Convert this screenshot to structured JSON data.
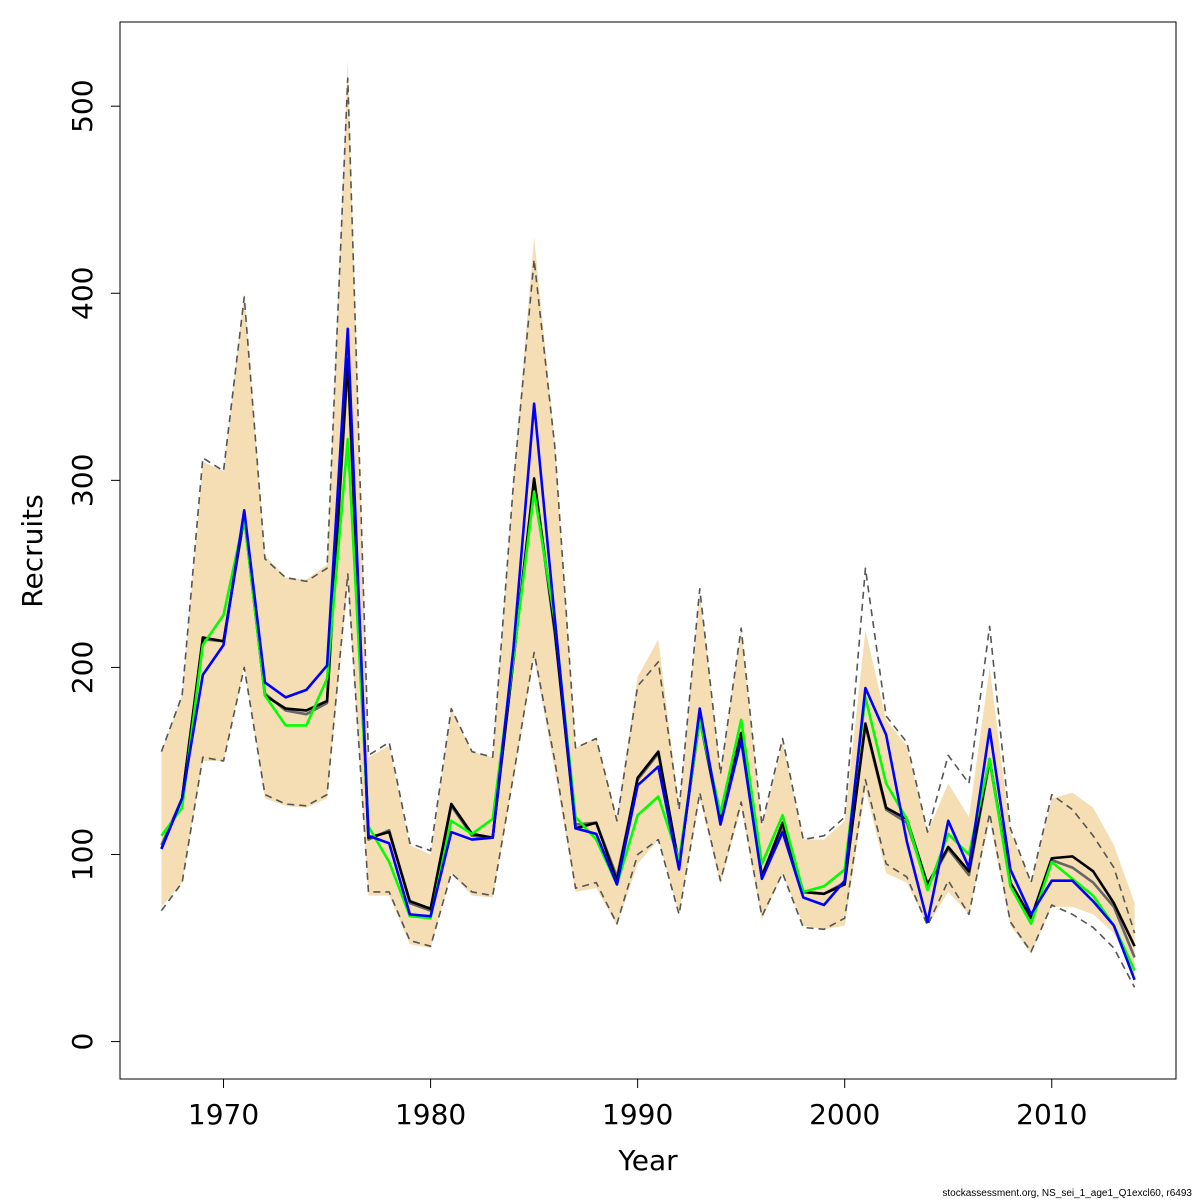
{
  "chart_data": {
    "type": "line",
    "title": "",
    "xlabel": "Year",
    "ylabel": "Recruits",
    "xlim": [
      1965,
      2016
    ],
    "ylim": [
      -20,
      545
    ],
    "x_ticks": [
      1970,
      1980,
      1990,
      2000,
      2010
    ],
    "y_ticks": [
      0,
      100,
      200,
      300,
      400,
      500
    ],
    "grid": false,
    "legend": "none",
    "footer": "stockassessment.org, NS_sei_1_age1_Q1excl60, r6493",
    "x": [
      1967,
      1968,
      1969,
      1970,
      1971,
      1972,
      1973,
      1974,
      1975,
      1976,
      1977,
      1978,
      1979,
      1980,
      1981,
      1982,
      1983,
      1984,
      1985,
      1986,
      1987,
      1988,
      1989,
      1990,
      1991,
      1992,
      1993,
      1994,
      1995,
      1996,
      1997,
      1998,
      1999,
      2000,
      2001,
      2002,
      2003,
      2004,
      2005,
      2006,
      2007,
      2008,
      2009,
      2010,
      2011,
      2012,
      2013,
      2014
    ],
    "band": {
      "color": "#F5DEB3",
      "lower": [
        72,
        85,
        150,
        150,
        200,
        130,
        126,
        125,
        130,
        245,
        78,
        78,
        52,
        50,
        90,
        78,
        77,
        140,
        205,
        145,
        80,
        82,
        62,
        95,
        108,
        68,
        130,
        84,
        125,
        65,
        90,
        62,
        60,
        62,
        135,
        90,
        85,
        62,
        80,
        68,
        118,
        62,
        47,
        72,
        72,
        68,
        58,
        35
      ],
      "upper": [
        155,
        185,
        310,
        305,
        400,
        260,
        248,
        247,
        255,
        525,
        152,
        158,
        105,
        100,
        178,
        155,
        152,
        300,
        430,
        320,
        157,
        162,
        120,
        195,
        215,
        125,
        240,
        145,
        220,
        115,
        160,
        108,
        108,
        118,
        220,
        172,
        158,
        112,
        138,
        120,
        200,
        112,
        85,
        130,
        133,
        125,
        105,
        74
      ]
    },
    "series": [
      {
        "color": "#555555",
        "style": "dashed",
        "values": [
          70,
          85,
          152,
          150,
          200,
          132,
          127,
          126,
          132,
          250,
          80,
          80,
          54,
          51,
          90,
          80,
          78,
          142,
          208,
          150,
          82,
          85,
          63,
          100,
          108,
          68,
          133,
          86,
          128,
          67,
          90,
          61,
          60,
          66,
          140,
          95,
          88,
          62,
          86,
          68,
          122,
          64,
          48,
          73,
          68,
          61,
          50,
          29
        ]
      },
      {
        "color": "#555555",
        "style": "dashed",
        "values": [
          155,
          185,
          312,
          305,
          398,
          258,
          248,
          246,
          253,
          515,
          153,
          160,
          106,
          102,
          178,
          155,
          152,
          298,
          418,
          318,
          157,
          162,
          118,
          190,
          203,
          124,
          242,
          143,
          221,
          116,
          162,
          108,
          110,
          120,
          253,
          174,
          160,
          112,
          153,
          138,
          222,
          114,
          85,
          132,
          124,
          110,
          93,
          58
        ]
      },
      {
        "color": "#666666",
        "style": "solid",
        "values": [
          105,
          130,
          215,
          214,
          280,
          186,
          177,
          175,
          181,
          362,
          108,
          113,
          74,
          70,
          126,
          110,
          109,
          204,
          300,
          218,
          116,
          117,
          88,
          140,
          154,
          95,
          172,
          117,
          163,
          89,
          115,
          80,
          79,
          85,
          169,
          124,
          117,
          83,
          103,
          89,
          150,
          85,
          66,
          97,
          93,
          85,
          72,
          45
        ]
      },
      {
        "color": "#000000",
        "style": "solid",
        "values": [
          103,
          130,
          216,
          214,
          281,
          185,
          178,
          177,
          182,
          365,
          109,
          112,
          75,
          71,
          127,
          111,
          109,
          204,
          301,
          220,
          114,
          117,
          86,
          141,
          155,
          94,
          173,
          118,
          165,
          88,
          117,
          80,
          79,
          84,
          170,
          125,
          119,
          84,
          104,
          91,
          151,
          85,
          66,
          98,
          99,
          91,
          74,
          51
        ]
      },
      {
        "color": "#00FF00",
        "style": "solid",
        "values": [
          110,
          125,
          212,
          228,
          280,
          185,
          169,
          169,
          194,
          322,
          115,
          96,
          67,
          66,
          118,
          111,
          119,
          205,
          294,
          225,
          120,
          108,
          84,
          121,
          131,
          97,
          172,
          122,
          172,
          95,
          121,
          80,
          83,
          92,
          184,
          138,
          119,
          81,
          111,
          100,
          151,
          83,
          63,
          96,
          87,
          78,
          62,
          38
        ]
      },
      {
        "color": "#0000FF",
        "style": "solid",
        "values": [
          103,
          130,
          196,
          212,
          284,
          192,
          184,
          188,
          201,
          381,
          110,
          106,
          68,
          67,
          112,
          108,
          109,
          210,
          341,
          226,
          114,
          111,
          84,
          137,
          147,
          92,
          178,
          116,
          161,
          87,
          112,
          77,
          73,
          86,
          189,
          164,
          107,
          64,
          118,
          93,
          167,
          92,
          68,
          86,
          86,
          75,
          62,
          33
        ]
      }
    ]
  }
}
